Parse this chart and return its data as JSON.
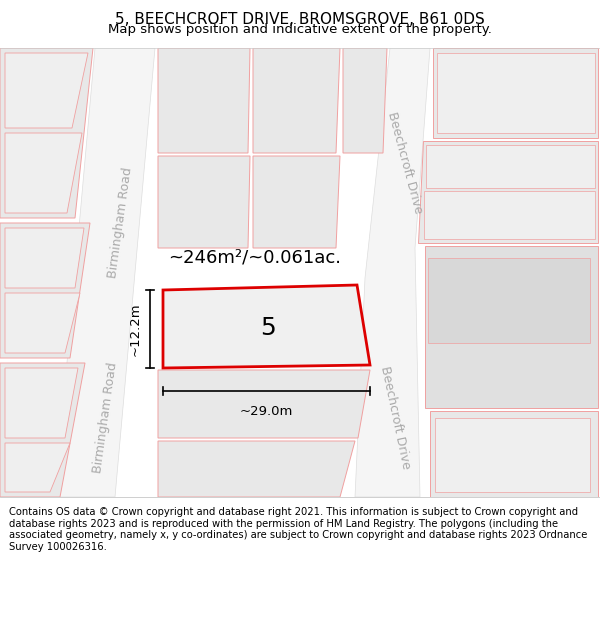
{
  "title": "5, BEECHCROFT DRIVE, BROMSGROVE, B61 0DS",
  "subtitle": "Map shows position and indicative extent of the property.",
  "footer": "Contains OS data © Crown copyright and database right 2021. This information is subject to Crown copyright and database rights 2023 and is reproduced with the permission of HM Land Registry. The polygons (including the associated geometry, namely x, y co-ordinates) are subject to Crown copyright and database rights 2023 Ordnance Survey 100026316.",
  "property_label": "5",
  "area_label": "~246m²/~0.061ac.",
  "width_label": "~29.0m",
  "height_label": "~12.2m",
  "birmingham_road_label": "Birmingham Road",
  "beechcroft_drive_label1": "Beechcroft Drive",
  "beechcroft_drive_label2": "Beechcroft Drive",
  "map_bg": "#ffffff",
  "block_fill": "#e8e8e8",
  "block_fill2": "#efefef",
  "road_fill": "#f0f0f0",
  "pink": "#f0a0a0",
  "red": "#dd0000",
  "gray_text": "#aaaaaa",
  "title_fontsize": 11,
  "subtitle_fontsize": 9.5,
  "footer_fontsize": 7.2,
  "prop_label_fontsize": 18,
  "area_fontsize": 13,
  "dim_fontsize": 9.5,
  "road_fontsize": 9
}
